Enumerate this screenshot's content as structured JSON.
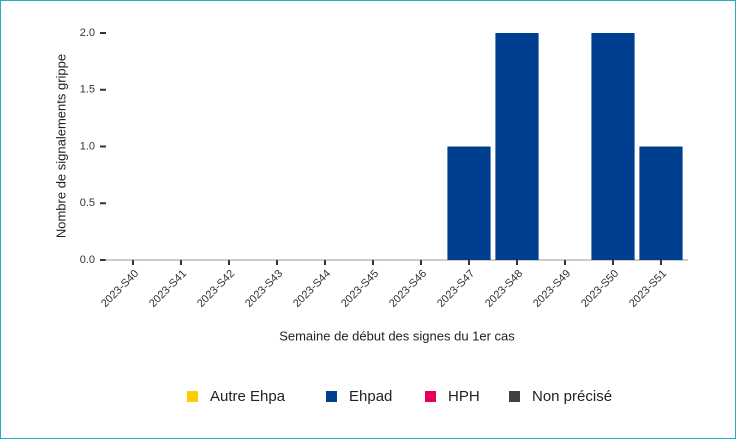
{
  "chart_data": {
    "type": "bar",
    "stacked": true,
    "categories": [
      "2023-S40",
      "2023-S41",
      "2023-S42",
      "2023-S43",
      "2023-S44",
      "2023-S45",
      "2023-S46",
      "2023-S47",
      "2023-S48",
      "2023-S49",
      "2023-S50",
      "2023-S51"
    ],
    "series": [
      {
        "name": "Autre Ehpa",
        "color": "#ffcc00",
        "values": [
          0,
          0,
          0,
          0,
          0,
          0,
          0,
          0,
          0,
          0,
          0,
          0
        ]
      },
      {
        "name": "Ehpad",
        "color": "#003f8f",
        "values": [
          0,
          0,
          0,
          0,
          0,
          0,
          0,
          1,
          2,
          0,
          2,
          1
        ]
      },
      {
        "name": "HPH",
        "color": "#e6005c",
        "values": [
          0,
          0,
          0,
          0,
          0,
          0,
          0,
          0,
          0,
          0,
          0,
          0
        ]
      },
      {
        "name": "Non précisé",
        "color": "#404040",
        "values": [
          0,
          0,
          0,
          0,
          0,
          0,
          0,
          0,
          0,
          0,
          0,
          0
        ]
      }
    ],
    "xlabel": "Semaine de début des signes du 1er cas",
    "ylabel": "Nombre de signalements grippe",
    "ylim": [
      0,
      2
    ],
    "yticks": [
      {
        "value": 0,
        "label": "0.0"
      },
      0.5,
      {
        "value": 1,
        "label": "1.0"
      },
      1.5,
      {
        "value": 2,
        "label": "2.0"
      }
    ],
    "legend": "bottom"
  }
}
